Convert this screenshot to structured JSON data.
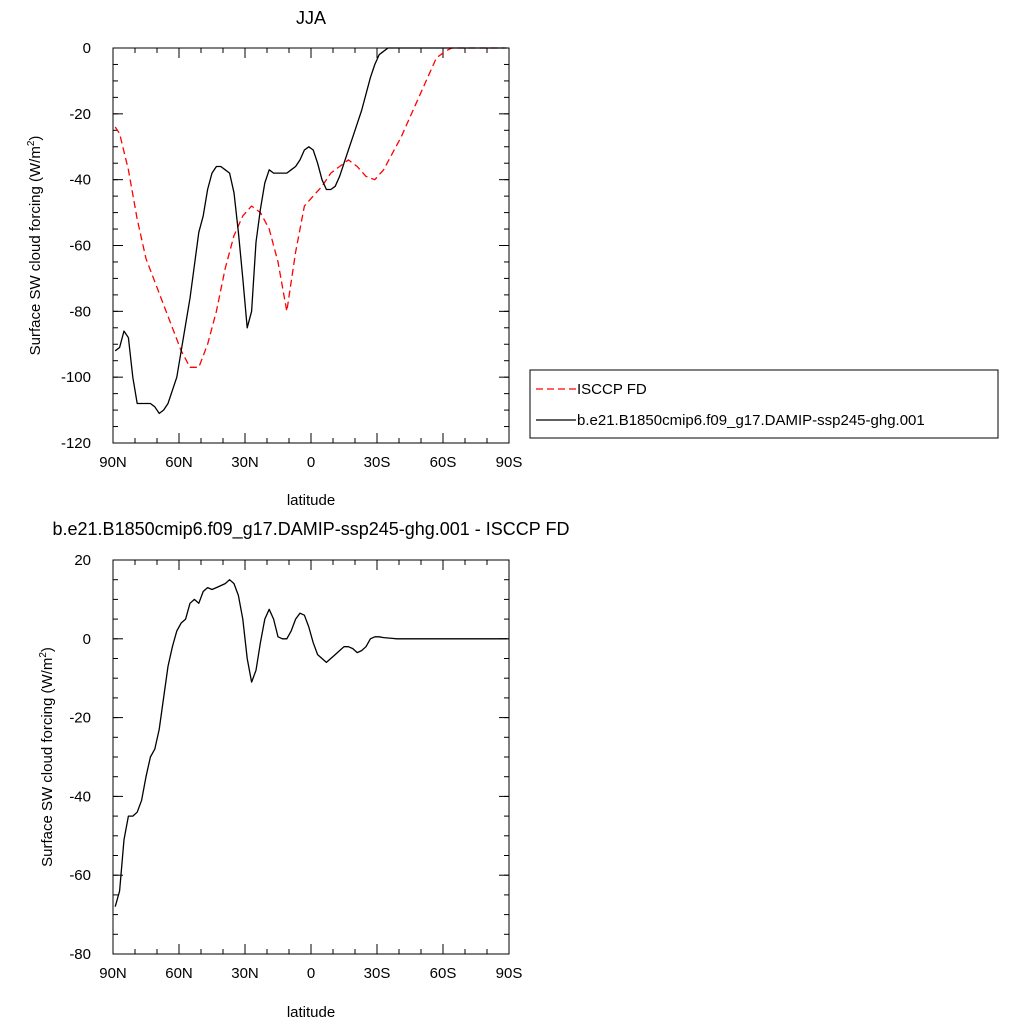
{
  "chart_data": [
    {
      "type": "line",
      "title": "JJA",
      "xlabel": "latitude",
      "ylabel": "Surface SW cloud forcing (W/m",
      "ylabel_sup": "2",
      "ylabel_close": ")",
      "xlim": [
        90,
        -90
      ],
      "ylim": [
        -120,
        0
      ],
      "x_ticks": [
        90,
        60,
        30,
        0,
        -30,
        -60,
        -90
      ],
      "x_tick_labels": [
        "90N",
        "60N",
        "30N",
        "0",
        "30S",
        "60S",
        "90S"
      ],
      "y_ticks": [
        0,
        -20,
        -40,
        -60,
        -80,
        -100,
        -120
      ],
      "y_tick_labels": [
        "0",
        "-20",
        "-40",
        "-60",
        "-80",
        "-100",
        "-120"
      ],
      "legend": {
        "placement": "right",
        "entries": [
          {
            "label": "ISCCP FD",
            "color": "#ff0000",
            "dash": "dashed"
          },
          {
            "label": "b.e21.B1850cmip6.f09_g17.DAMIP-ssp245-ghg.001",
            "color": "#000000",
            "dash": "solid"
          }
        ]
      },
      "series": [
        {
          "name": "ISCCP FD",
          "color": "#ff0000",
          "dash": "dashed",
          "x": [
            89,
            87,
            83,
            79,
            75,
            71,
            67,
            63,
            59,
            55,
            51,
            47,
            43,
            39,
            35,
            31,
            27,
            23,
            19,
            15,
            11,
            7,
            3,
            -1,
            -5,
            -9,
            -13,
            -17,
            -21,
            -25,
            -29,
            -33,
            -37,
            -41,
            -45,
            -49,
            -53,
            -57,
            -61,
            -64,
            -67,
            -70,
            -73,
            -77,
            -81,
            -85,
            -88
          ],
          "y": [
            -24,
            -26,
            -37,
            -52,
            -64,
            -71,
            -78,
            -85,
            -92,
            -97,
            -97,
            -90,
            -80,
            -67,
            -57,
            -51,
            -48,
            -50,
            -55,
            -65,
            -80,
            -62,
            -48,
            -45,
            -42,
            -38,
            -36,
            -34,
            -36,
            -39,
            -40,
            -37,
            -32,
            -27,
            -21,
            -15,
            -9,
            -3,
            -1,
            0,
            0,
            0,
            0,
            0,
            0,
            0,
            0
          ]
        },
        {
          "name": "b.e21.B1850cmip6.f09_g17.DAMIP-ssp245-ghg.001",
          "color": "#000000",
          "dash": "solid",
          "x": [
            89,
            87,
            85,
            83,
            81,
            79,
            77,
            75,
            73,
            71,
            69,
            67,
            65,
            63,
            61,
            59,
            57,
            55,
            53,
            51,
            49,
            47,
            45,
            43,
            41,
            39,
            37,
            35,
            33,
            31,
            29,
            27,
            25,
            23,
            21,
            19,
            17,
            15,
            13,
            11,
            9,
            7,
            5,
            3,
            1,
            -1,
            -3,
            -5,
            -7,
            -9,
            -11,
            -13,
            -15,
            -17,
            -19,
            -21,
            -23,
            -25,
            -27,
            -29,
            -31,
            -33,
            -35,
            -37,
            -39,
            -41,
            -43,
            -45,
            -47,
            -49,
            -51,
            -53,
            -55,
            -57,
            -59,
            -61,
            -63,
            -65,
            -67,
            -69,
            -71,
            -73,
            -75,
            -77,
            -79,
            -81,
            -83,
            -85,
            -87,
            -89
          ],
          "y": [
            -92,
            -91,
            -86,
            -88,
            -100,
            -108,
            -108,
            -108,
            -108,
            -109,
            -111,
            -110,
            -108,
            -104,
            -100,
            -92,
            -84,
            -76,
            -66,
            -56,
            -51,
            -43,
            -38,
            -36,
            -36,
            -37,
            -38,
            -44,
            -56,
            -70,
            -85,
            -80,
            -59,
            -49,
            -41,
            -37,
            -38,
            -38,
            -38,
            -38,
            -37,
            -36,
            -34,
            -31,
            -30,
            -31,
            -35,
            -40,
            -43,
            -43,
            -42,
            -39,
            -35,
            -31,
            -27,
            -23,
            -19,
            -14,
            -9,
            -5,
            -2,
            -1,
            0,
            0,
            0,
            0,
            0,
            0,
            0,
            0,
            0,
            0,
            0,
            0,
            0,
            0,
            0,
            0,
            0,
            0,
            0,
            0,
            0,
            0,
            0,
            0,
            0,
            0,
            0,
            0
          ]
        }
      ]
    },
    {
      "type": "line",
      "title": "b.e21.B1850cmip6.f09_g17.DAMIP-ssp245-ghg.001 - ISCCP FD",
      "xlabel": "latitude",
      "ylabel": "Surface SW cloud forcing (W/m",
      "ylabel_sup": "2",
      "ylabel_close": ")",
      "xlim": [
        90,
        -90
      ],
      "ylim": [
        -80,
        20
      ],
      "x_ticks": [
        90,
        60,
        30,
        0,
        -30,
        -60,
        -90
      ],
      "x_tick_labels": [
        "90N",
        "60N",
        "30N",
        "0",
        "30S",
        "60S",
        "90S"
      ],
      "y_ticks": [
        20,
        0,
        -20,
        -40,
        -60,
        -80
      ],
      "y_tick_labels": [
        "20",
        "0",
        "-20",
        "-40",
        "-60",
        "-80"
      ],
      "series": [
        {
          "color": "#000000",
          "dash": "solid",
          "x": [
            89,
            87,
            85,
            83,
            81,
            79,
            77,
            75,
            73,
            71,
            69,
            67,
            65,
            63,
            61,
            59,
            57,
            55,
            53,
            51,
            49,
            47,
            45,
            43,
            41,
            39,
            37,
            35,
            33,
            31,
            29,
            27,
            25,
            23,
            21,
            19,
            17,
            15,
            13,
            11,
            9,
            7,
            5,
            3,
            1,
            -1,
            -3,
            -5,
            -7,
            -9,
            -11,
            -13,
            -15,
            -17,
            -19,
            -21,
            -23,
            -25,
            -27,
            -29,
            -31,
            -33,
            -35,
            -37,
            -39,
            -41,
            -43,
            -45,
            -47,
            -49,
            -51,
            -53,
            -55,
            -57,
            -59,
            -61,
            -63,
            -65,
            -67,
            -69,
            -71,
            -73,
            -75,
            -77,
            -79,
            -81,
            -83,
            -85,
            -87,
            -89
          ],
          "y": [
            -68,
            -64,
            -51,
            -45,
            -45,
            -44,
            -41,
            -35,
            -30,
            -28,
            -23,
            -15,
            -7,
            -2,
            2,
            4,
            5,
            9,
            10,
            9,
            12,
            13,
            12.5,
            13,
            13.5,
            14,
            15,
            14,
            11,
            5,
            -5,
            -11,
            -8,
            -1,
            5,
            7.5,
            5,
            0.5,
            0,
            0,
            2,
            5,
            6.5,
            6,
            3,
            -1,
            -4,
            -5,
            -6,
            -5,
            -4,
            -3,
            -2,
            -2,
            -2.5,
            -3.5,
            -3,
            -2,
            0,
            0.5,
            0.5,
            0.3,
            0.2,
            0.1,
            0,
            0,
            0,
            0,
            0,
            0,
            0,
            0,
            0,
            0,
            0,
            0,
            0,
            0,
            0,
            0,
            0,
            0,
            0,
            0,
            0,
            0,
            0,
            0,
            0,
            0
          ]
        }
      ]
    }
  ]
}
